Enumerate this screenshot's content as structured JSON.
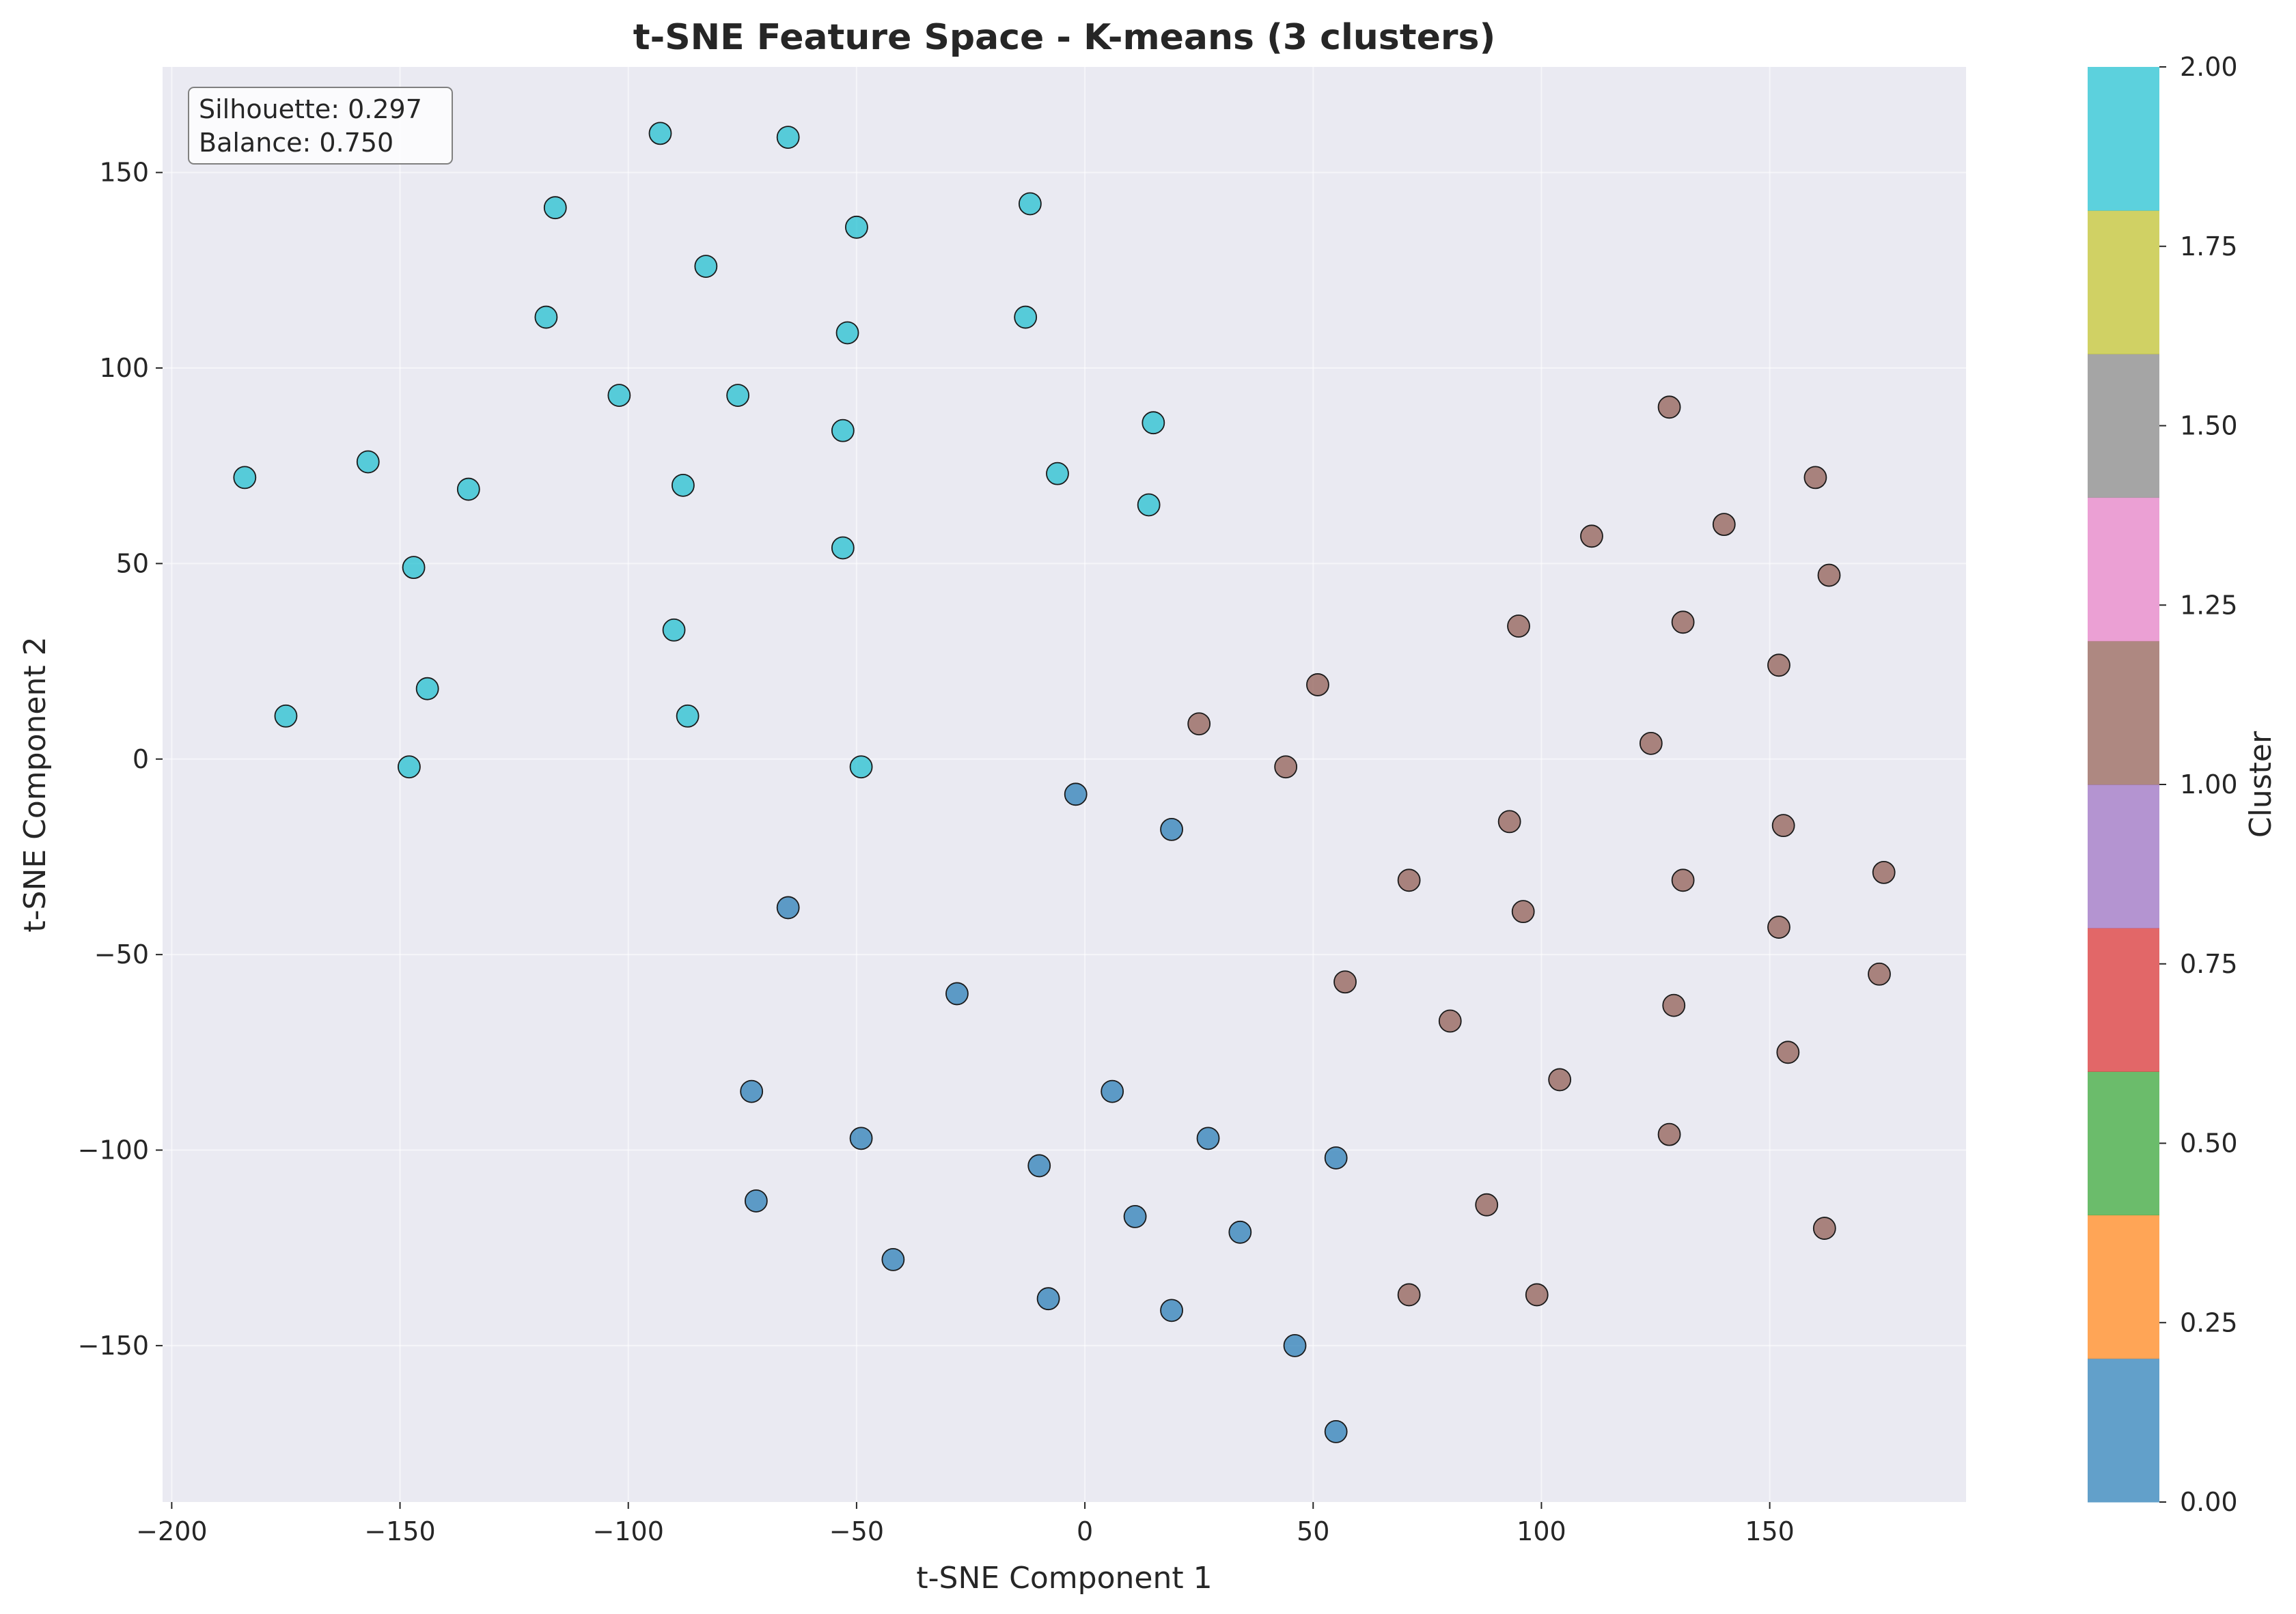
{
  "chart_data": {
    "type": "scatter",
    "title": "t-SNE Feature Space - K-means (3 clusters)",
    "xlabel": "t-SNE Component 1",
    "ylabel": "t-SNE Component 2",
    "xlim": [
      -202,
      193
    ],
    "ylim": [
      -190,
      177
    ],
    "xticks": [
      -200,
      -150,
      -100,
      -50,
      0,
      50,
      100,
      150
    ],
    "yticks": [
      -150,
      -100,
      -50,
      0,
      50,
      100,
      150
    ],
    "xtick_labels": [
      "−200",
      "−150",
      "−100",
      "−50",
      "0",
      "50",
      "100",
      "150"
    ],
    "ytick_labels": [
      "−150",
      "−100",
      "−50",
      "0",
      "50",
      "100",
      "150"
    ],
    "grid": true,
    "annotation": {
      "lines": [
        "Silhouette: 0.297",
        "Balance: 0.750"
      ],
      "placement": "top-left"
    },
    "colorbar": {
      "label": "Cluster",
      "min": 0,
      "max": 2,
      "tick_labels": [
        "0.00",
        "0.25",
        "0.50",
        "0.75",
        "1.00",
        "1.25",
        "1.50",
        "1.75",
        "2.00"
      ],
      "colors": [
        "#1f77b4",
        "#ff7f0e",
        "#2ca02c",
        "#d62728",
        "#9467bd",
        "#8c564b",
        "#e377c2",
        "#7f7f7f",
        "#bcbd22",
        "#17becf"
      ]
    },
    "point_colors": {
      "0": "#1f77b4",
      "1": "#8c564b",
      "2": "#17becf"
    },
    "series": [
      {
        "cluster": 2,
        "points": [
          [
            -184,
            72
          ],
          [
            -175,
            11
          ],
          [
            -157,
            76
          ],
          [
            -148,
            -2
          ],
          [
            -147,
            49
          ],
          [
            -144,
            18
          ],
          [
            -135,
            69
          ],
          [
            -116,
            141
          ],
          [
            -118,
            113
          ],
          [
            -102,
            93
          ],
          [
            -93,
            160
          ],
          [
            -90,
            33
          ],
          [
            -88,
            70
          ],
          [
            -87,
            11
          ],
          [
            -83,
            126
          ],
          [
            -76,
            93
          ],
          [
            -65,
            159
          ],
          [
            -53,
            84
          ],
          [
            -53,
            54
          ],
          [
            -52,
            109
          ],
          [
            -50,
            136
          ],
          [
            -49,
            -2
          ],
          [
            -13,
            113
          ],
          [
            -12,
            142
          ],
          [
            -6,
            73
          ],
          [
            14,
            65
          ],
          [
            15,
            86
          ]
        ]
      },
      {
        "cluster": 0,
        "points": [
          [
            -65,
            -38
          ],
          [
            -28,
            -60
          ],
          [
            -73,
            -85
          ],
          [
            -72,
            -113
          ],
          [
            -49,
            -97
          ],
          [
            -42,
            -128
          ],
          [
            -10,
            -104
          ],
          [
            -8,
            -138
          ],
          [
            -2,
            -9
          ],
          [
            6,
            -85
          ],
          [
            11,
            -117
          ],
          [
            19,
            -141
          ],
          [
            19,
            -18
          ],
          [
            27,
            -97
          ],
          [
            34,
            -121
          ],
          [
            46,
            -150
          ],
          [
            55,
            -172
          ],
          [
            55,
            -102
          ]
        ]
      },
      {
        "cluster": 1,
        "points": [
          [
            25,
            9
          ],
          [
            44,
            -2
          ],
          [
            51,
            19
          ],
          [
            57,
            -57
          ],
          [
            71,
            -31
          ],
          [
            71,
            -137
          ],
          [
            80,
            -67
          ],
          [
            88,
            -114
          ],
          [
            93,
            -16
          ],
          [
            95,
            34
          ],
          [
            96,
            -39
          ],
          [
            99,
            -137
          ],
          [
            104,
            -82
          ],
          [
            111,
            57
          ],
          [
            124,
            4
          ],
          [
            128,
            90
          ],
          [
            128,
            -96
          ],
          [
            129,
            -63
          ],
          [
            131,
            -31
          ],
          [
            131,
            35
          ],
          [
            140,
            60
          ],
          [
            152,
            24
          ],
          [
            152,
            -43
          ],
          [
            153,
            -17
          ],
          [
            154,
            -75
          ],
          [
            160,
            72
          ],
          [
            162,
            -120
          ],
          [
            163,
            47
          ],
          [
            174,
            -55
          ],
          [
            175,
            -29
          ]
        ]
      }
    ]
  }
}
